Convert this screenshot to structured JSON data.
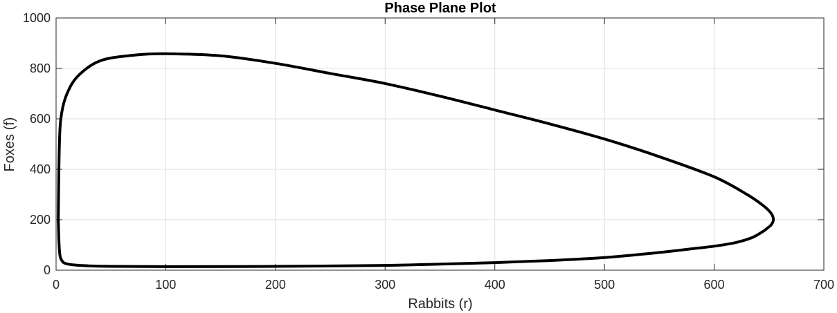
{
  "chart_data": {
    "type": "line",
    "title": "Phase Plane Plot",
    "xlabel": "Rabbits (r)",
    "ylabel": "Foxes (f)",
    "xlim": [
      0,
      700
    ],
    "ylim": [
      0,
      1000
    ],
    "xticks": [
      0,
      100,
      200,
      300,
      400,
      500,
      600,
      700
    ],
    "yticks": [
      0,
      200,
      400,
      600,
      800,
      1000
    ],
    "grid": true,
    "legend": false,
    "colors": {
      "line": "#000000",
      "grid": "#dfdfdf",
      "axis": "#262626"
    },
    "series": [
      {
        "x": [
          2,
          3,
          5,
          10,
          20,
          40,
          70,
          100,
          150,
          200,
          250,
          300,
          350,
          400,
          450,
          500,
          550,
          600,
          630,
          645,
          652,
          654,
          652,
          648,
          645,
          635,
          620,
          600,
          580,
          550,
          500,
          450,
          400,
          350,
          300,
          200,
          100,
          50,
          25,
          10,
          5,
          3,
          2
        ],
        "y": [
          200,
          500,
          620,
          700,
          770,
          830,
          852,
          858,
          850,
          820,
          780,
          740,
          690,
          635,
          580,
          520,
          450,
          370,
          300,
          255,
          225,
          200,
          180,
          165,
          155,
          130,
          110,
          95,
          85,
          70,
          50,
          38,
          30,
          24,
          19,
          15,
          14,
          15,
          18,
          25,
          40,
          80,
          200
        ]
      }
    ]
  }
}
